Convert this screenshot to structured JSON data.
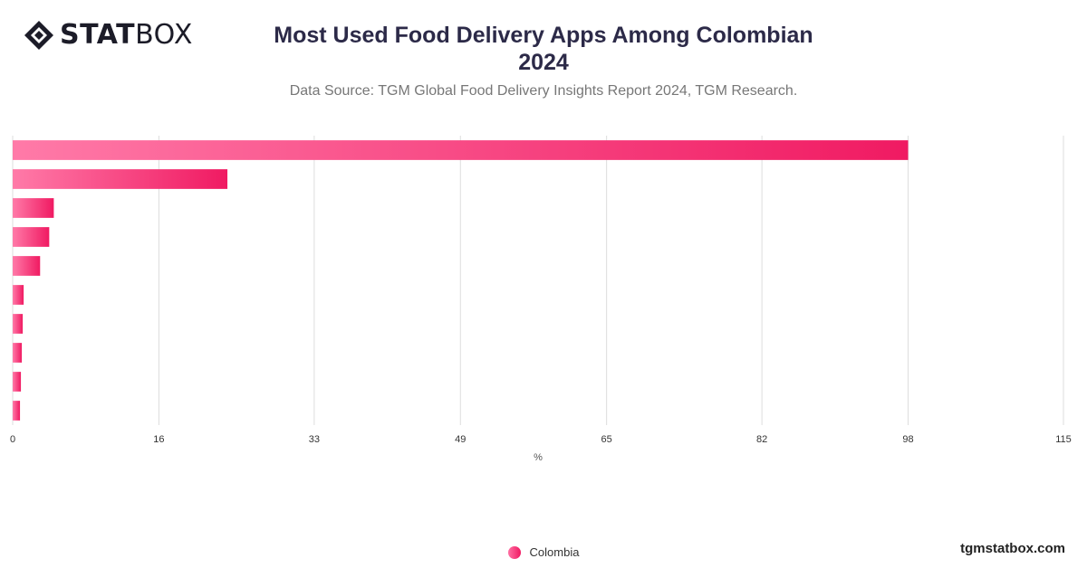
{
  "header": {
    "logo_bold": "STAT",
    "logo_light": "BOX",
    "title_line1": "Most Used Food Delivery Apps Among Colombian",
    "title_line2": "2024",
    "subtitle": "Data Source: TGM Global Food Delivery Insights Report 2024, TGM Research."
  },
  "footer": {
    "watermark": "tgmstatbox.com"
  },
  "colors": {
    "bar_start": "#ff7aa8",
    "bar_end": "#f01a62",
    "grid": "#dddddd",
    "axis_text": "#333333"
  },
  "chart_data": {
    "type": "bar",
    "orientation": "horizontal",
    "categories": [
      "",
      "",
      "",
      "",
      "",
      "",
      "",
      "",
      "",
      ""
    ],
    "series": [
      {
        "name": "Colombia",
        "values": [
          98,
          23.5,
          4.5,
          4,
          3,
          1.2,
          1.1,
          1,
          0.9,
          0.8
        ]
      }
    ],
    "xlabel": "%",
    "xlim": [
      0,
      115
    ],
    "xticks": [
      0,
      16,
      33,
      49,
      65,
      82,
      98,
      115
    ],
    "grid": true,
    "legend": "bottom-center"
  }
}
